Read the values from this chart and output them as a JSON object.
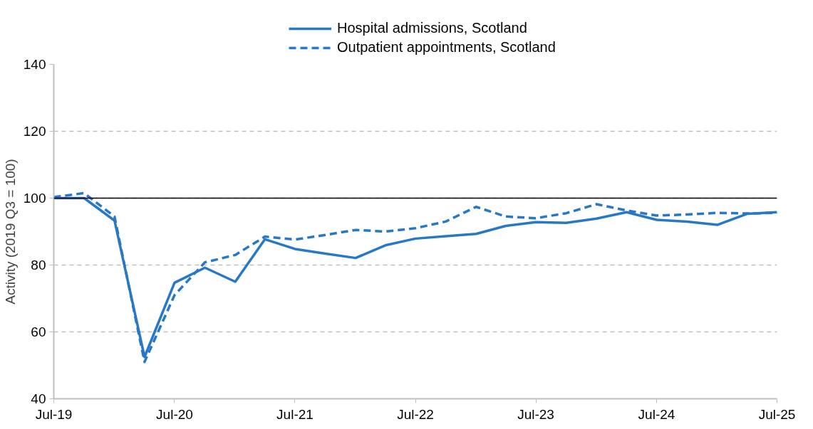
{
  "chart_data": {
    "type": "line",
    "ylabel": "Activity (2019 Q3 = 100)",
    "x": [
      "2019-07",
      "2019-10",
      "2020-01",
      "2020-04",
      "2020-07",
      "2020-10",
      "2021-01",
      "2021-04",
      "2021-07",
      "2021-10",
      "2022-01",
      "2022-04",
      "2022-07",
      "2022-10",
      "2023-01",
      "2023-04",
      "2023-07",
      "2023-10",
      "2024-01",
      "2024-04",
      "2024-07",
      "2024-10",
      "2025-01",
      "2025-04",
      "2025-07"
    ],
    "series": [
      {
        "name": "Hospital admissions, Scotland",
        "color": "#2878c8",
        "line_style": "solid",
        "values": [
          100,
          100,
          93.3,
          52.5,
          74.7,
          79.2,
          75,
          87.7,
          84.8,
          83.4,
          82.1,
          85.9,
          87.9,
          88.6,
          89.3,
          91.7,
          92.8,
          92.6,
          93.9,
          95.8,
          93.5,
          93,
          92,
          95.3,
          95.8
        ]
      },
      {
        "name": "Outpatient appointments, Scotland",
        "color": "#2878c8",
        "line_style": "dashed",
        "values": [
          100.3,
          101.5,
          94.5,
          51,
          71,
          80.8,
          83,
          88.5,
          87.6,
          89,
          90.5,
          90,
          91,
          93,
          97.4,
          94.5,
          94,
          95.5,
          98.2,
          96.3,
          94.8,
          95.1,
          95.6,
          95.4,
          95.6
        ]
      }
    ],
    "xlim": [
      "2019-07",
      "2025-07"
    ],
    "xticks": [
      {
        "value": "2019-07",
        "label": "Jul-19"
      },
      {
        "value": "2020-07",
        "label": "Jul-20"
      },
      {
        "value": "2021-07",
        "label": "Jul-21"
      },
      {
        "value": "2022-07",
        "label": "Jul-22"
      },
      {
        "value": "2023-07",
        "label": "Jul-23"
      },
      {
        "value": "2024-07",
        "label": "Jul-24"
      },
      {
        "value": "2025-07",
        "label": "Jul-25"
      }
    ],
    "ylim": [
      40,
      140
    ],
    "yticks": [
      40,
      60,
      80,
      100,
      120,
      140
    ],
    "ref_lines": [
      {
        "axis": "y",
        "value": 100,
        "color": "#000000"
      }
    ],
    "grid": "y",
    "legend": "top",
    "marker": "none"
  }
}
